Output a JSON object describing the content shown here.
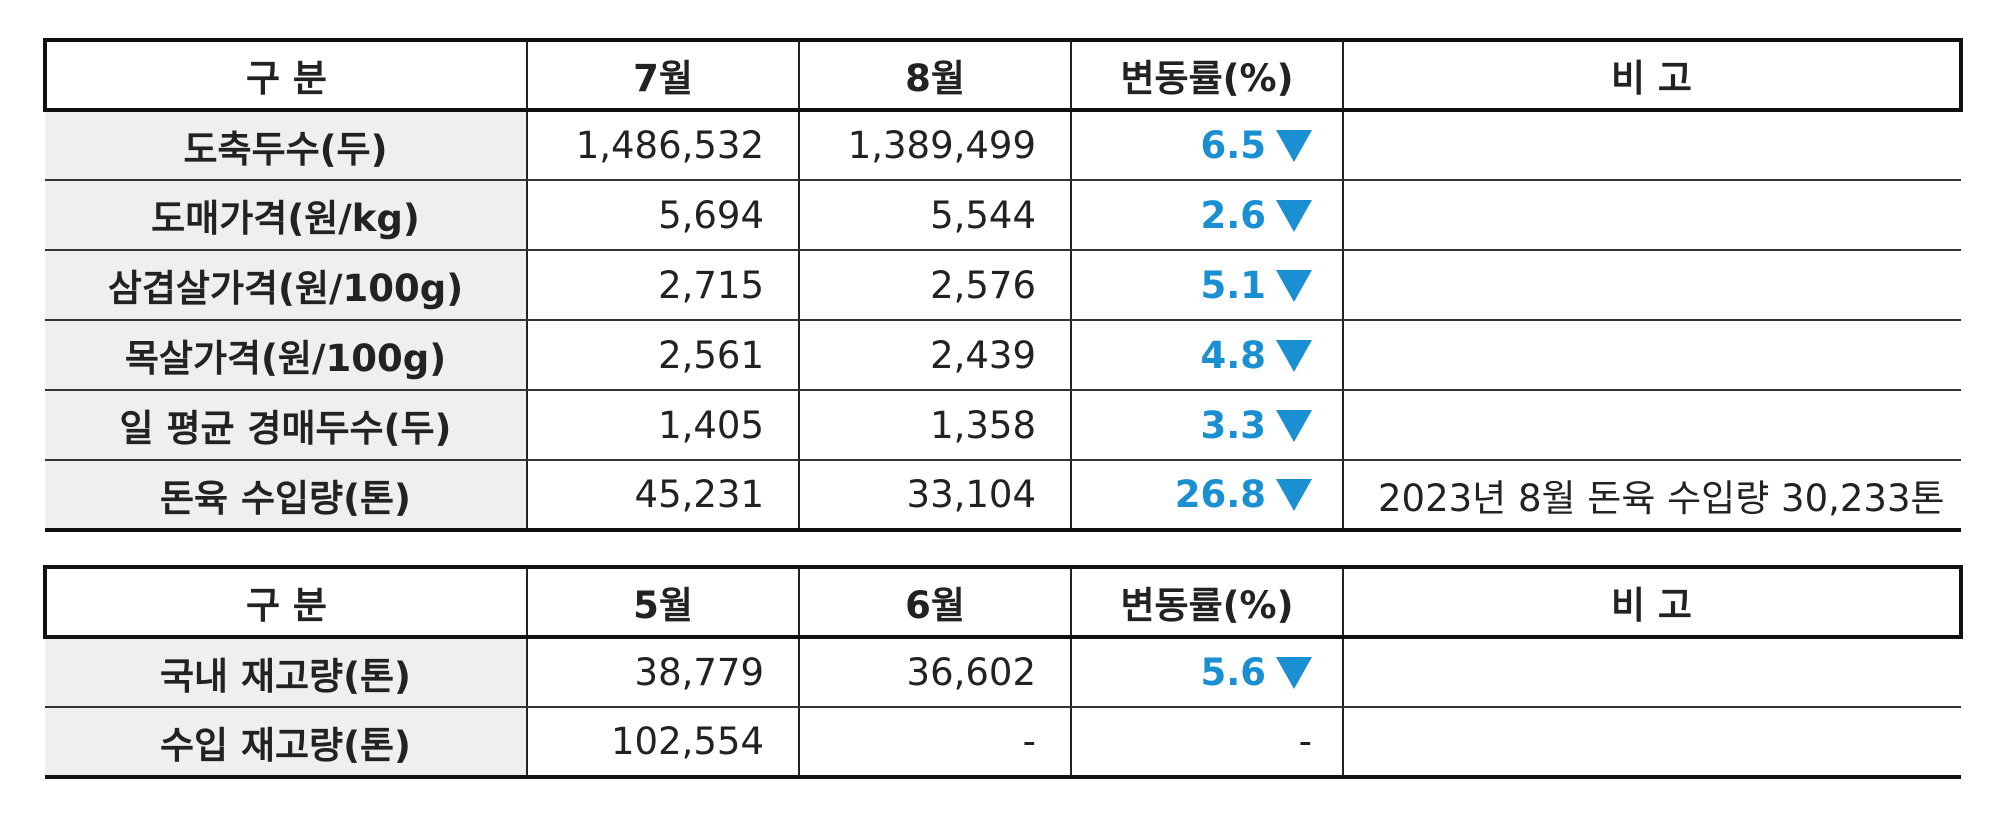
{
  "table1": {
    "headers": [
      "구 분",
      "7월",
      "8월",
      "변동률(%)",
      "비 고"
    ],
    "rows": [
      {
        "label": "도축두수(두)",
        "v1": "1,486,532",
        "v2": "1,389,499",
        "rate": "6.5",
        "note": ""
      },
      {
        "label": "도매가격(원/kg)",
        "v1": "5,694",
        "v2": "5,544",
        "rate": "2.6",
        "note": ""
      },
      {
        "label": "삼겹살가격(원/100g)",
        "v1": "2,715",
        "v2": "2,576",
        "rate": "5.1",
        "note": ""
      },
      {
        "label": "목살가격(원/100g)",
        "v1": "2,561",
        "v2": "2,439",
        "rate": "4.8",
        "note": ""
      },
      {
        "label": "일 평균 경매두수(두)",
        "v1": "1,405",
        "v2": "1,358",
        "rate": "3.3",
        "note": ""
      },
      {
        "label": "돈육 수입량(톤)",
        "v1": "45,231",
        "v2": "33,104",
        "rate": "26.8",
        "note": "2023년 8월 돈육 수입량 30,233톤"
      }
    ]
  },
  "table2": {
    "headers": [
      "구 분",
      "5월",
      "6월",
      "변동률(%)",
      "비 고"
    ],
    "rows": [
      {
        "label": "국내 재고량(톤)",
        "v1": "38,779",
        "v2": "36,602",
        "rate": "5.6",
        "note": ""
      },
      {
        "label": "수입 재고량(톤)",
        "v1": "102,554",
        "v2": "-",
        "rate": "-",
        "note": ""
      }
    ]
  },
  "colors": {
    "accent_blue": "#1a8fd2",
    "label_background": "#efefef",
    "border": "#111111"
  },
  "icons": {
    "rate_trend": "arrow-down-icon"
  }
}
